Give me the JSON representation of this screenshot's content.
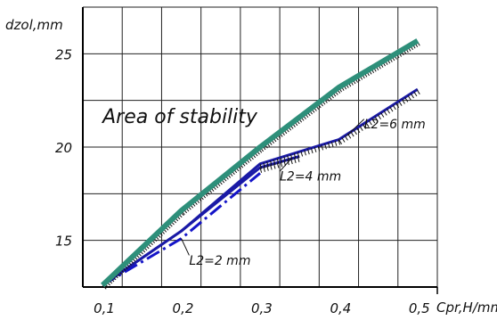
{
  "chart_data": {
    "type": "line",
    "title": "",
    "xlabel": "Cpr,H/mm",
    "ylabel": "dzol,mm",
    "xlim": [
      0.075,
      0.525
    ],
    "ylim": [
      12.5,
      27.5
    ],
    "x_ticks": [
      0.1,
      0.2,
      0.3,
      0.4,
      0.5
    ],
    "x_tick_labels": [
      "0,1",
      "0,2",
      "0,3",
      "0,4",
      "0,5"
    ],
    "y_ticks": [
      15,
      20,
      25
    ],
    "y_tick_labels": [
      "15",
      "20",
      "25"
    ],
    "grid": true,
    "series": [
      {
        "name": "L2=2 mm",
        "color": "#1414c8",
        "style": "dash-dot",
        "x": [
          0.1,
          0.2,
          0.3
        ],
        "y": [
          12.6,
          15.1,
          18.6
        ]
      },
      {
        "name": "L2=4 mm",
        "color": "#1a1aa6",
        "style": "solid-hatched",
        "x": [
          0.1,
          0.2,
          0.3,
          0.35
        ],
        "y": [
          12.6,
          15.5,
          18.9,
          19.5
        ]
      },
      {
        "name": "L2=6 mm",
        "color": "#1a1aa6",
        "style": "solid-hatched",
        "x": [
          0.1,
          0.2,
          0.3,
          0.4,
          0.5
        ],
        "y": [
          12.6,
          15.5,
          19.1,
          20.4,
          23.1
        ]
      },
      {
        "name": "",
        "color": "#2e8f7a",
        "style": "thick-boundary",
        "x": [
          0.1,
          0.2,
          0.3,
          0.4,
          0.5
        ],
        "y": [
          12.6,
          16.6,
          20.0,
          23.2,
          25.7
        ]
      }
    ],
    "annotations": [
      {
        "text": "Area of stability",
        "at_x": 0.1,
        "at_y": 21.3
      },
      {
        "text": "L2=2 mm",
        "at_x": 0.21,
        "at_y": 13.7
      },
      {
        "text": "L2=4 mm",
        "at_x": 0.325,
        "at_y": 18.2
      },
      {
        "text": "L2=6 mm",
        "at_x": 0.432,
        "at_y": 21.0
      }
    ]
  }
}
